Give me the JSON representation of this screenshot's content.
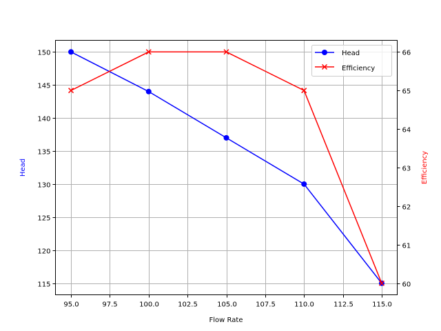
{
  "chart_data": {
    "type": "line",
    "title": "",
    "x": [
      95,
      100,
      105,
      110,
      115
    ],
    "xlabel": "Flow Rate",
    "xlim": [
      94.0,
      116.0
    ],
    "xticks": [
      "95.0",
      "97.5",
      "100.0",
      "102.5",
      "105.0",
      "107.5",
      "110.0",
      "112.5",
      "115.0"
    ],
    "grid": true,
    "legend_position": "upper right",
    "series": [
      {
        "name": "Head",
        "axis": "left",
        "values": [
          150,
          144,
          137,
          130,
          115
        ],
        "color": "#0000ff",
        "marker": "o"
      },
      {
        "name": "Efficiency",
        "axis": "right",
        "values": [
          65,
          66,
          66,
          65,
          60
        ],
        "color": "#ff0000",
        "marker": "x"
      }
    ],
    "ylabel_left": "Head",
    "ylim_left": [
      113.25,
      151.75
    ],
    "yticks_left": [
      "115",
      "120",
      "125",
      "130",
      "135",
      "140",
      "145",
      "150"
    ],
    "ylabel_right": "Efficiency",
    "ylim_right": [
      59.7,
      66.3
    ],
    "yticks_right": [
      "60",
      "61",
      "62",
      "63",
      "64",
      "65",
      "66"
    ]
  },
  "labels": {
    "xlabel": "Flow Rate",
    "ylabel_left": "Head",
    "ylabel_right": "Efficiency",
    "legend_head": "Head",
    "legend_efficiency": "Efficiency"
  },
  "colors": {
    "head": "#0000ff",
    "efficiency": "#ff0000",
    "grid": "#b0b0b0"
  }
}
